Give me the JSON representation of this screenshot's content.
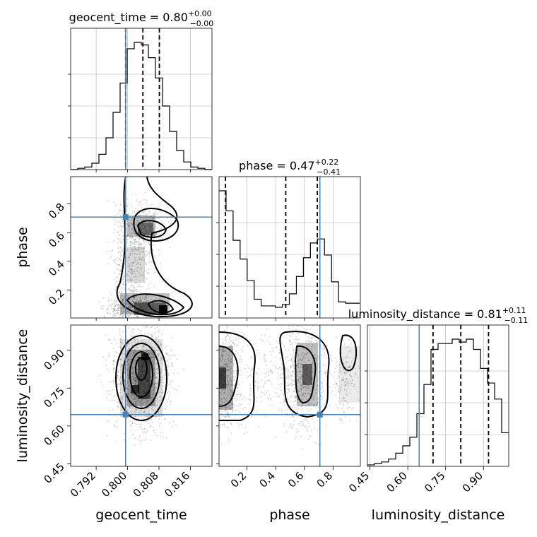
{
  "chart_data": {
    "type": "corner",
    "parameters": [
      "geocent_time",
      "phase",
      "luminosity_distance"
    ],
    "truths": [
      0.7995,
      0.708,
      0.645
    ],
    "ranges": {
      "geocent_time": [
        0.7855,
        0.8215
      ],
      "phase": [
        0.005,
        0.99
      ],
      "luminosity_distance": [
        0.44,
        1.0
      ]
    },
    "titles": [
      {
        "param": "geocent_time",
        "median": "0.80",
        "plus": "+0.00",
        "minus": "−0.00"
      },
      {
        "param": "phase",
        "median": "0.47",
        "plus": "+0.22",
        "minus": "−0.41"
      },
      {
        "param": "luminosity_distance",
        "median": "0.81",
        "plus": "+0.11",
        "minus": "−0.11"
      }
    ],
    "ticks": {
      "geocent_time": [
        "0.792",
        "0.800",
        "0.808",
        "0.816"
      ],
      "phase": [
        "0.2",
        "0.4",
        "0.6",
        "0.8"
      ],
      "luminosity_distance": [
        "0.45",
        "0.60",
        "0.75",
        "0.90"
      ]
    },
    "histograms": {
      "geocent_time": {
        "quantiles": [
          0.7995,
          0.8039,
          0.8081
        ],
        "edges_start": 0.7855,
        "bin_width": 0.0018,
        "counts": [
          0,
          1,
          2,
          5,
          12,
          25,
          45,
          68,
          95,
          100,
          98,
          88,
          72,
          50,
          30,
          15,
          6,
          2,
          1,
          0
        ]
      },
      "phase": {
        "quantiles": [
          0.05,
          0.47,
          0.69
        ],
        "edges_start": 0.005,
        "bin_width": 0.049,
        "counts": [
          95,
          80,
          58,
          44,
          28,
          14,
          9,
          9,
          8,
          10,
          18,
          31,
          45,
          56,
          59,
          47,
          27,
          12,
          11,
          11
        ]
      },
      "luminosity_distance": {
        "quantiles": [
          0.7,
          0.81,
          0.92
        ],
        "edges_start": 0.44,
        "bin_width": 0.028,
        "counts": [
          1,
          2,
          3,
          5,
          9,
          14,
          20,
          36,
          56,
          80,
          84,
          84,
          87,
          85,
          87,
          80,
          67,
          57,
          46,
          23
        ]
      }
    },
    "grid": true
  }
}
